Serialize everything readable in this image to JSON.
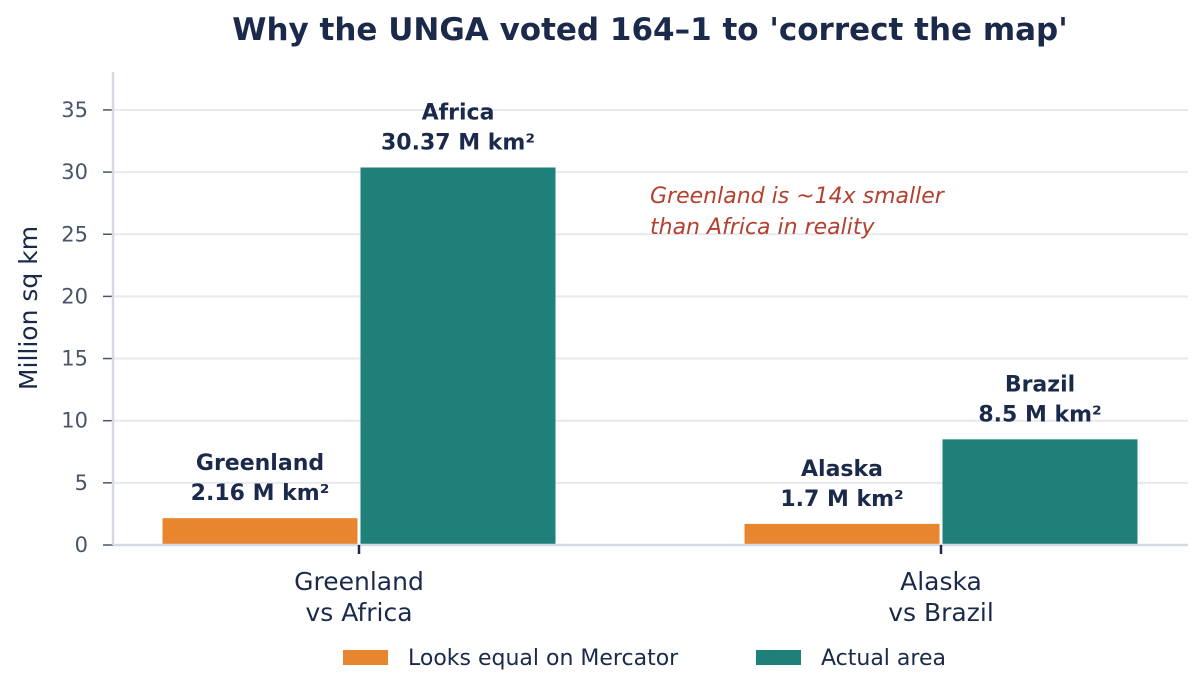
{
  "chart_data": {
    "type": "bar",
    "title": "Why the UNGA voted 164–1 to 'correct the map'",
    "ylabel": "Million sq km",
    "xlabel": "",
    "ylim": [
      0,
      38
    ],
    "yticks": [
      0,
      5,
      10,
      15,
      20,
      25,
      30,
      35
    ],
    "grid": "horizontal",
    "legend_position": "bottom",
    "categories": [
      [
        "Greenland",
        "vs Africa"
      ],
      [
        "Alaska",
        "vs Brazil"
      ]
    ],
    "series": [
      {
        "name": "Looks equal on Mercator",
        "color": "#e8862f",
        "values": [
          2.16,
          1.7
        ],
        "labels": [
          [
            "Greenland",
            "2.16 M km²"
          ],
          [
            "Alaska",
            "1.7 M km²"
          ]
        ]
      },
      {
        "name": "Actual area",
        "color": "#1f7f79",
        "values": [
          30.37,
          8.5
        ],
        "labels": [
          [
            "Africa",
            "30.37 M km²"
          ],
          [
            "Brazil",
            "8.5 M km²"
          ]
        ]
      }
    ],
    "annotation": [
      "Greenland is ~14x smaller",
      "than Africa in reality"
    ],
    "annotation_position": "upper-middle"
  }
}
